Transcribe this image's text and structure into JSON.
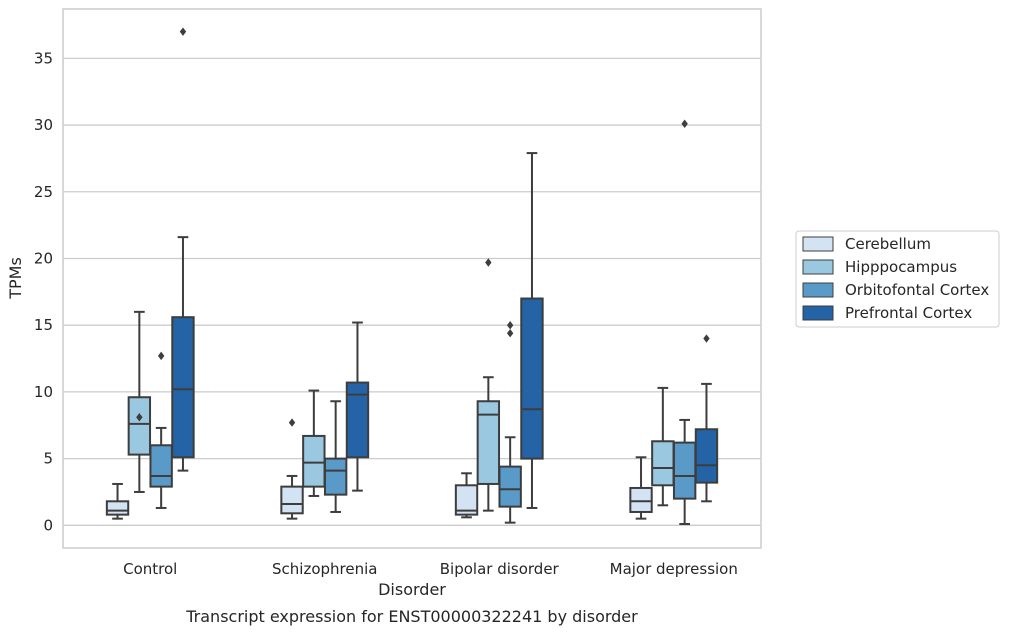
{
  "chart_data": {
    "type": "box",
    "title": "",
    "caption": "Transcript expression for ENST00000322241 by disorder",
    "xlabel": "Disorder",
    "ylabel": "TPMs",
    "ylim": [
      -1.7,
      38.7
    ],
    "yticks": [
      0,
      5,
      10,
      15,
      20,
      25,
      30,
      35
    ],
    "grid": "horizontal",
    "legend_position": "right",
    "categories": [
      "Control",
      "Schizophrenia",
      "Bipolar disorder",
      "Major depression"
    ],
    "series": [
      {
        "name": "Cerebellum",
        "color": "#d3e3f3",
        "boxes": [
          {
            "whisker_low": 0.5,
            "q1": 0.8,
            "median": 1.1,
            "q3": 1.8,
            "whisker_high": 3.1,
            "outliers": []
          },
          {
            "whisker_low": 0.5,
            "q1": 0.9,
            "median": 1.6,
            "q3": 2.9,
            "whisker_high": 3.7,
            "outliers": [
              7.7
            ]
          },
          {
            "whisker_low": 0.6,
            "q1": 0.8,
            "median": 1.1,
            "q3": 3.0,
            "whisker_high": 3.9,
            "outliers": []
          },
          {
            "whisker_low": 0.5,
            "q1": 1.0,
            "median": 1.8,
            "q3": 2.8,
            "whisker_high": 5.1,
            "outliers": []
          }
        ]
      },
      {
        "name": "Hipppocampus",
        "color": "#9ac8e0",
        "boxes": [
          {
            "whisker_low": 2.5,
            "q1": 5.3,
            "median": 7.6,
            "q3": 9.6,
            "whisker_high": 16.0,
            "outliers": [
              8.1
            ]
          },
          {
            "whisker_low": 2.2,
            "q1": 2.9,
            "median": 4.7,
            "q3": 6.7,
            "whisker_high": 10.1,
            "outliers": []
          },
          {
            "whisker_low": 1.1,
            "q1": 3.1,
            "median": 8.3,
            "q3": 9.3,
            "whisker_high": 11.1,
            "outliers": [
              19.7
            ]
          },
          {
            "whisker_low": 1.5,
            "q1": 3.0,
            "median": 4.3,
            "q3": 6.3,
            "whisker_high": 10.3,
            "outliers": []
          }
        ]
      },
      {
        "name": "Orbitofontal Cortex",
        "color": "#5a9ac8",
        "boxes": [
          {
            "whisker_low": 1.3,
            "q1": 2.9,
            "median": 3.7,
            "q3": 6.0,
            "whisker_high": 7.3,
            "outliers": [
              12.7
            ]
          },
          {
            "whisker_low": 1.0,
            "q1": 2.3,
            "median": 4.1,
            "q3": 5.0,
            "whisker_high": 9.3,
            "outliers": []
          },
          {
            "whisker_low": 0.2,
            "q1": 1.4,
            "median": 2.7,
            "q3": 4.4,
            "whisker_high": 6.6,
            "outliers": [
              14.4,
              15.0
            ]
          },
          {
            "whisker_low": 0.1,
            "q1": 2.0,
            "median": 3.7,
            "q3": 6.2,
            "whisker_high": 7.9,
            "outliers": [
              30.1
            ]
          }
        ]
      },
      {
        "name": "Prefrontal Cortex",
        "color": "#2464a6",
        "boxes": [
          {
            "whisker_low": 4.1,
            "q1": 5.1,
            "median": 10.2,
            "q3": 15.6,
            "whisker_high": 21.6,
            "outliers": [
              37.0
            ]
          },
          {
            "whisker_low": 2.6,
            "q1": 5.1,
            "median": 9.8,
            "q3": 10.7,
            "whisker_high": 15.2,
            "outliers": []
          },
          {
            "whisker_low": 1.3,
            "q1": 5.0,
            "median": 8.7,
            "q3": 17.0,
            "whisker_high": 27.9,
            "outliers": []
          },
          {
            "whisker_low": 1.8,
            "q1": 3.2,
            "median": 4.5,
            "q3": 7.2,
            "whisker_high": 10.6,
            "outliers": [
              14.0
            ]
          }
        ]
      }
    ]
  }
}
